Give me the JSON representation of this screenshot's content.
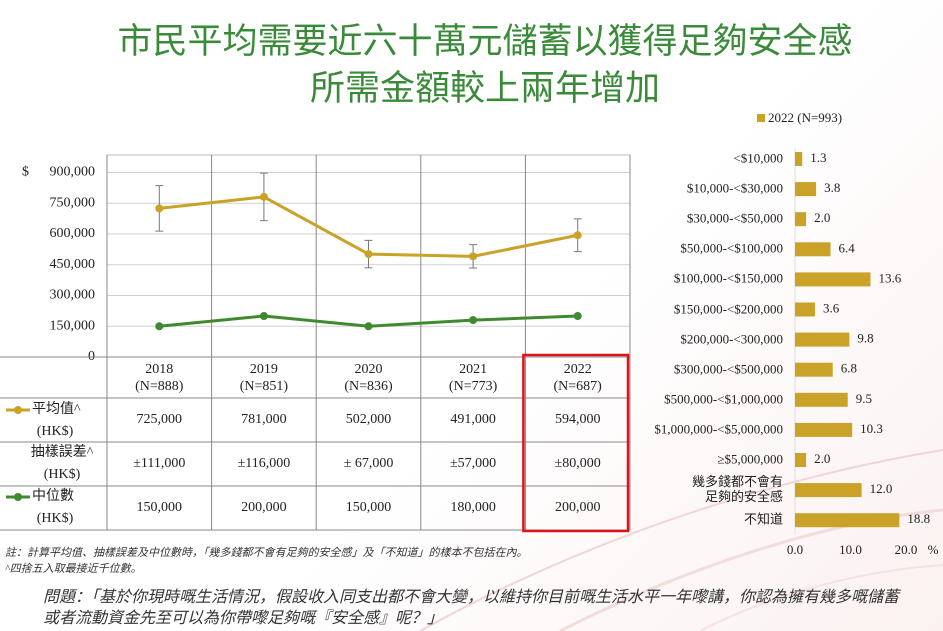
{
  "title": [
    "市民平均需要近六十萬元儲蓄以獲得足夠安全感",
    "所需金額較上兩年增加"
  ],
  "chart_data": [
    {
      "type": "line",
      "y_unit": "$",
      "categories": [
        "2018",
        "2019",
        "2020",
        "2021",
        "2022"
      ],
      "sample_sizes": [
        "(N=888)",
        "(N=851)",
        "(N=836)",
        "(N=773)",
        "(N=687)"
      ],
      "ylim": [
        0,
        1000000
      ],
      "yticks": [
        0,
        {
          "value": 150000,
          "label": "150,000"
        },
        {
          "value": 300000,
          "label": "300,000"
        },
        {
          "value": 450000,
          "label": "450,000"
        },
        {
          "value": 600000,
          "label": "600,000"
        },
        {
          "value": 750000,
          "label": "750,000"
        },
        {
          "value": 900000,
          "label": "900,000"
        }
      ],
      "grid": true,
      "highlight_index": 4,
      "highlight_color": "#d9141b",
      "error_row_label": "抽樣誤差^",
      "error_row_unit": "(HK$)",
      "series": [
        {
          "name": "平均值^",
          "unit": "(HK$)",
          "color": "#c9a227",
          "values": [
            725000,
            781000,
            502000,
            491000,
            594000
          ],
          "value_labels": [
            "725,000",
            "781,000",
            "502,000",
            "491,000",
            "594,000"
          ],
          "errors": [
            111000,
            116000,
            67000,
            57000,
            80000
          ],
          "error_labels": [
            "±111,000",
            "±116,000",
            "± 67,000",
            "±57,000",
            "±80,000"
          ]
        },
        {
          "name": "中位數",
          "unit": "(HK$)",
          "color": "#3f8a2e",
          "values": [
            150000,
            200000,
            150000,
            180000,
            200000
          ],
          "value_labels": [
            "150,000",
            "200,000",
            "150,000",
            "180,000",
            "200,000"
          ]
        }
      ]
    },
    {
      "type": "bar",
      "orientation": "horizontal",
      "categories": [
        "<$10,000",
        "$10,000-<$30,000",
        "$30,000-<$50,000",
        "$50,000-<$100,000",
        "$100,000-<$150,000",
        "$150,000-<$200,000",
        "$200,000-<300,000",
        "$300,000-<$500,000",
        "$500,000-<$1,000,000",
        "$1,000,000-<$5,000,000",
        "≥$5,000,000",
        "幾多錢都不會有\n足夠的安全感",
        "不知道"
      ],
      "series": [
        {
          "name": "2022 (N=993)",
          "color": "#c9a227",
          "values": [
            1.3,
            3.8,
            2.0,
            6.4,
            13.6,
            3.6,
            9.8,
            6.8,
            9.5,
            10.3,
            2.0,
            12.0,
            18.8
          ],
          "value_labels": [
            "1.3",
            "3.8",
            "2.0",
            "6.4",
            "13.6",
            "3.6",
            "9.8",
            "6.8",
            "9.5",
            "10.3",
            "2.0",
            "12.0",
            "18.8"
          ]
        }
      ],
      "xlim": [
        0,
        20
      ],
      "xticks": [
        {
          "value": 0,
          "label": "0.0"
        },
        {
          "value": 10,
          "label": "10.0"
        },
        {
          "value": 20,
          "label": "20.0"
        }
      ],
      "x_unit": "%"
    }
  ],
  "notes": [
    "註：計算平均值、抽樣誤差及中位數時，「幾多錢都不會有足夠的安全感」及「不知道」的樣本不包括在內。",
    "^四捨五入取最接近千位數。"
  ],
  "question": "問題：「基於你現時嘅生活情況，假設收入同支出都不會大變，以維持你目前嘅生活水平一年嚟講，你認為擁有幾多嘅儲蓄或者流動資金先至可以為你帶嚟足夠嘅『安全感』呢？」"
}
